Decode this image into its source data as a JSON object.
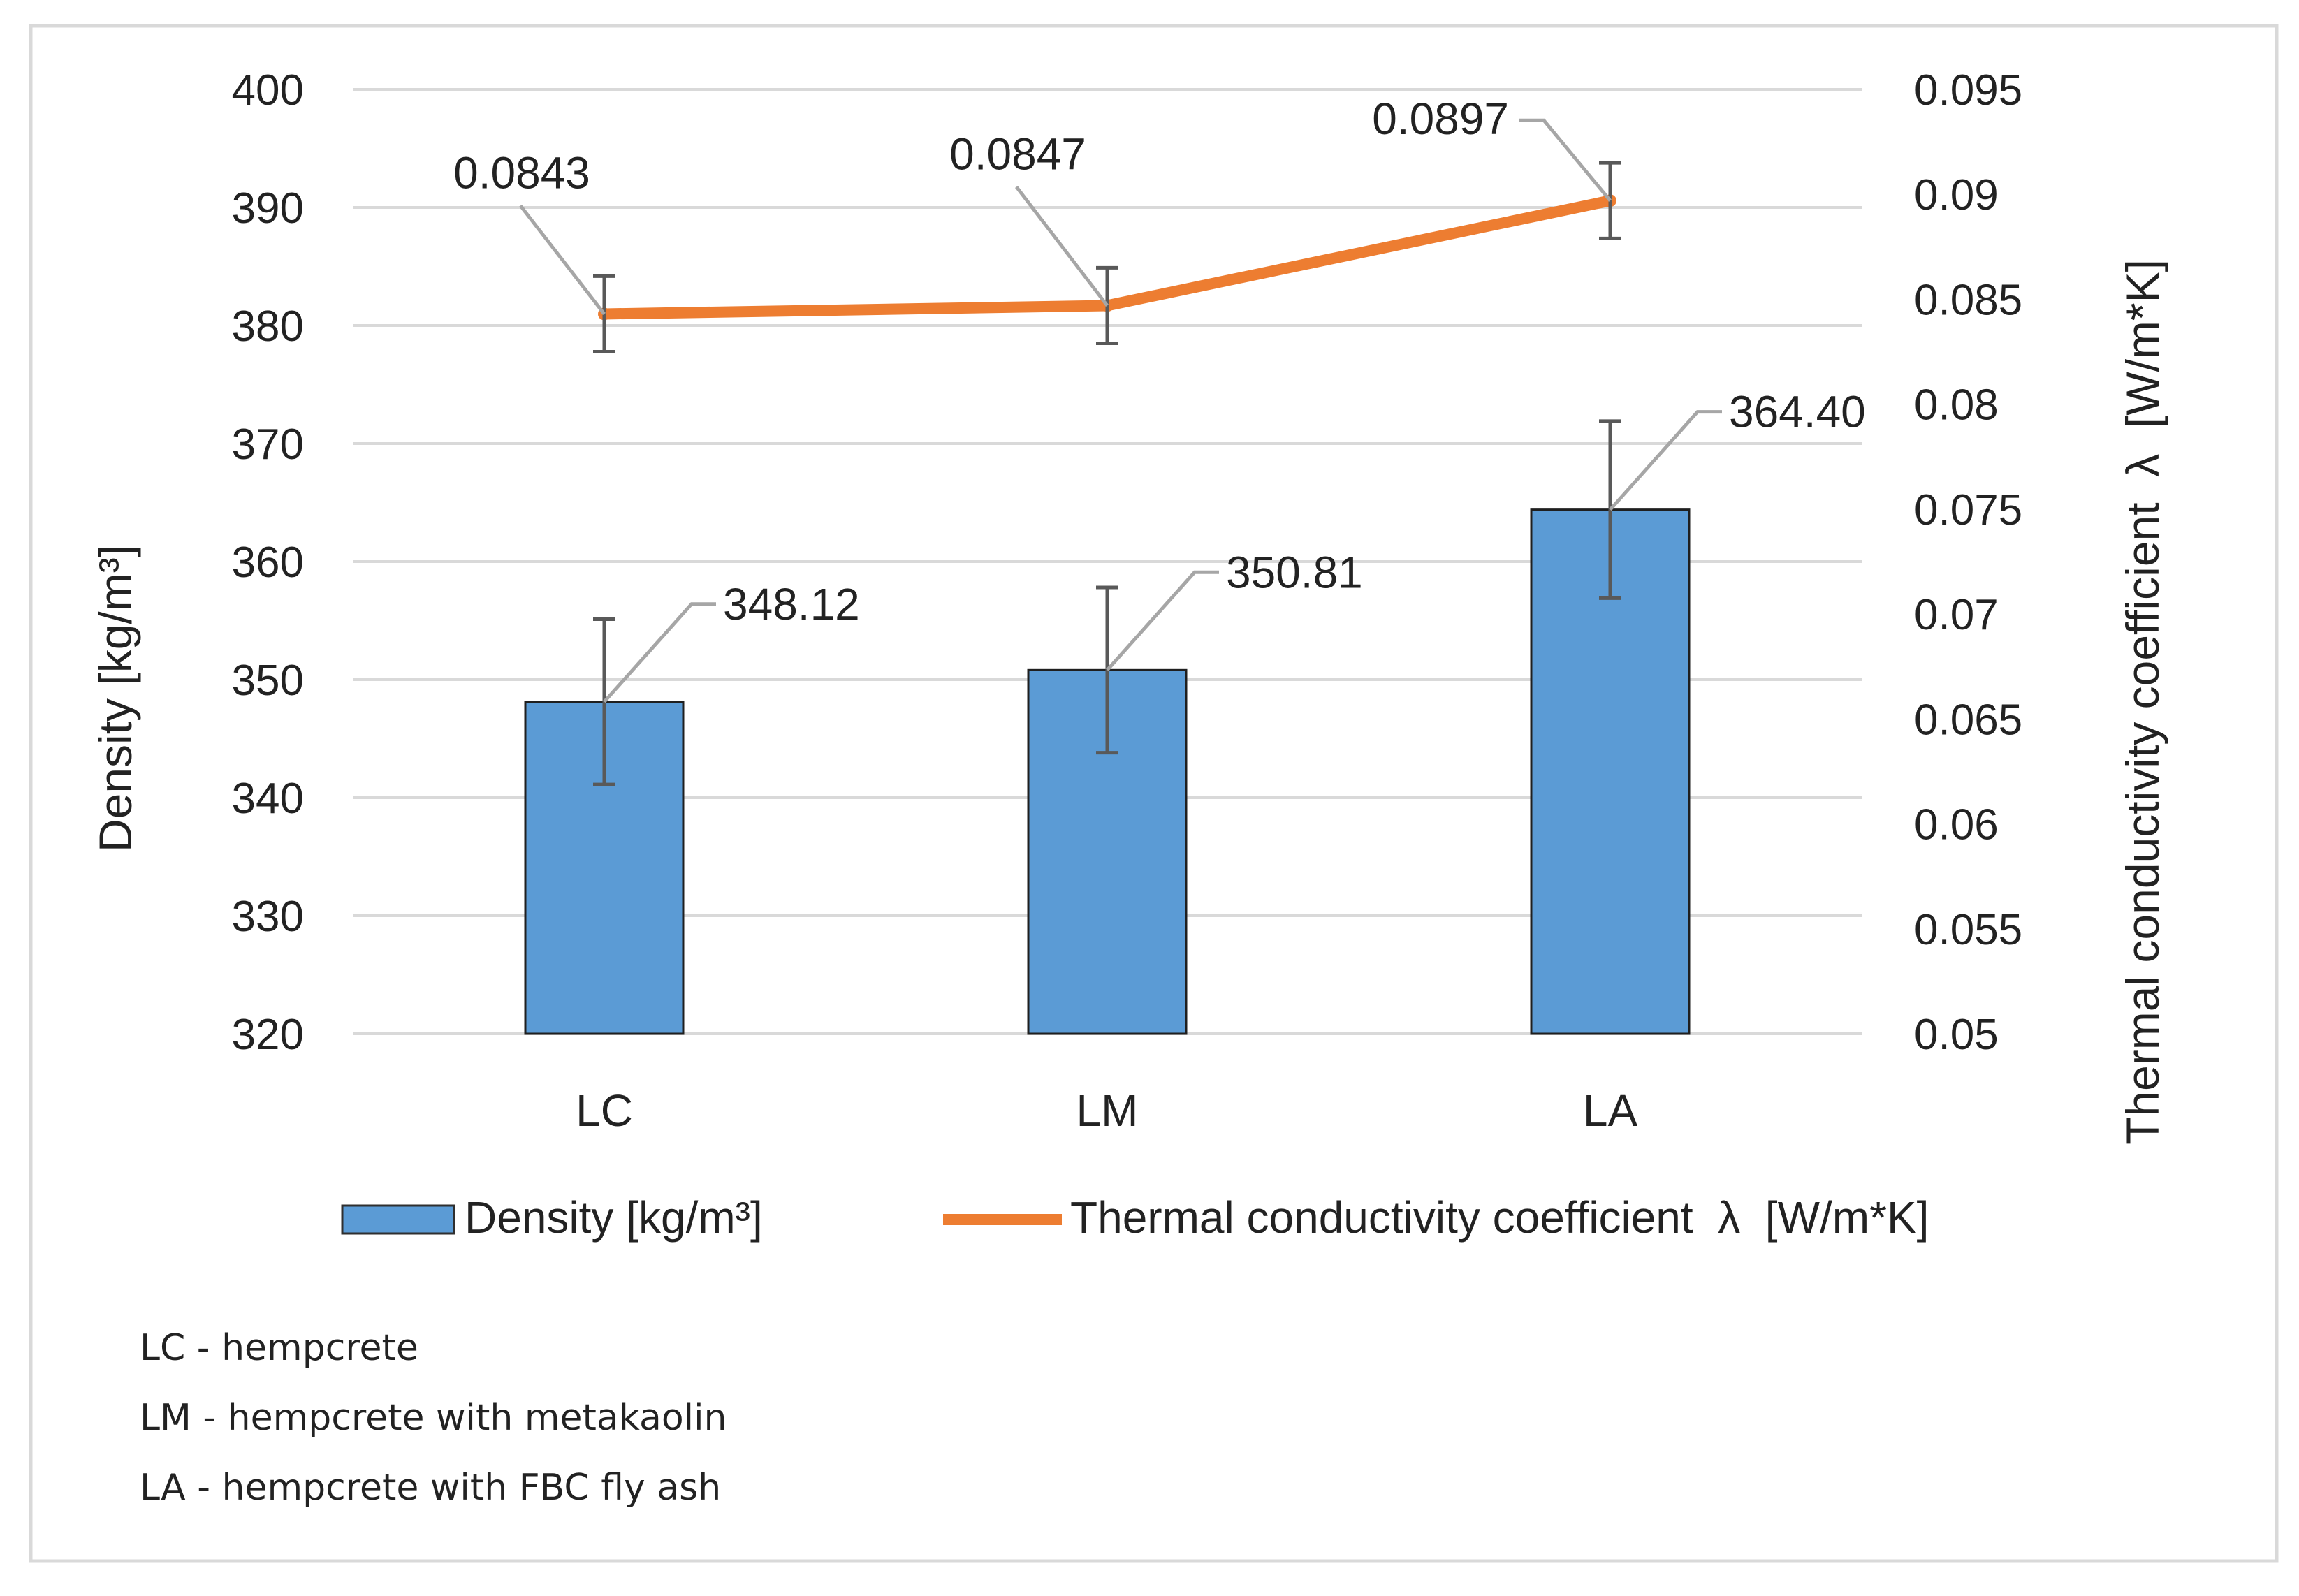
{
  "chart_data": {
    "type": "bar",
    "categories": [
      "LC",
      "LM",
      "LA"
    ],
    "series": [
      {
        "name": "Density [kg/m³]",
        "kind": "bar",
        "axis": "left",
        "values": [
          348.12,
          350.81,
          364.4
        ],
        "labels": [
          "348.12",
          "350.81",
          "364.40"
        ],
        "error": [
          7,
          7,
          7.5
        ],
        "color": "#5b9bd5"
      },
      {
        "name": "Thermal conductivity coefficient  λ  [W/m*K]",
        "kind": "line",
        "axis": "right",
        "values": [
          0.0843,
          0.0847,
          0.0897
        ],
        "labels": [
          "0.0843",
          "0.0847",
          "0.0897"
        ],
        "error": [
          0.0018,
          0.0018,
          0.0018
        ],
        "color": "#ed7d31"
      }
    ],
    "y_left": {
      "label": "Density [kg/m³]",
      "min": 320,
      "max": 400,
      "ticks": [
        "320",
        "330",
        "340",
        "350",
        "360",
        "370",
        "380",
        "390",
        "400"
      ]
    },
    "y_right": {
      "label": "Thermal conductivity coefficient  λ  [W/m*K]",
      "min": 0.05,
      "max": 0.095,
      "ticks": [
        "0.05",
        "0.055",
        "0.06",
        "0.065",
        "0.07",
        "0.075",
        "0.08",
        "0.085",
        "0.09",
        "0.095"
      ]
    },
    "legend_position": "bottom",
    "grid": true
  },
  "notes": [
    "LC - hempcrete",
    "LM - hempcrete with metakaolin",
    "LA - hempcrete with FBC fly ash"
  ],
  "colors": {
    "bar_fill": "#5b9bd5",
    "line": "#ed7d31",
    "grid": "#d9d9d9",
    "error_bar": "#595959",
    "leader": "#a6a6a6",
    "frame": "#d9d9d9",
    "text": "#222222"
  }
}
